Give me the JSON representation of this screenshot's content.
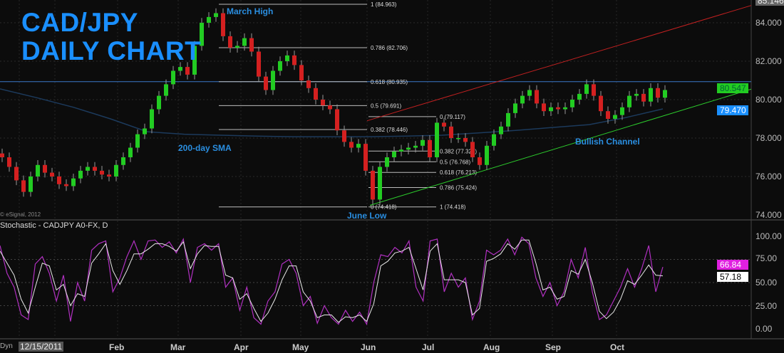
{
  "title": {
    "line1": "CAD/JPY",
    "line2": "DAILY CHART"
  },
  "annotations": {
    "march_high": "March High",
    "sma": "200-day SMA",
    "june_low": "June Low",
    "channel": "Bullish Channel"
  },
  "copyright": "© eSignal, 2012",
  "stoch_title": "Stochastic - CADJPY A0-FX, D",
  "date_label": "12/15/2011",
  "corner_label": "Dyn",
  "months": [
    "Feb",
    "Mar",
    "Apr",
    "May",
    "Jun",
    "Jul",
    "Aug",
    "Sep",
    "Oct"
  ],
  "colors": {
    "up": "#22cc22",
    "down": "#d42020",
    "accent": "#1a8fff",
    "sma": "#1c3a5c",
    "channel_upper": "#c02020",
    "channel_lower": "#2ccc2c",
    "stoch_k": "#b030c0",
    "stoch_d": "#e8e8e8"
  },
  "chart_data": [
    {
      "type": "candlestick",
      "title": "CAD/JPY DAILY CHART",
      "ylim": [
        74,
        85.146
      ],
      "y_ticks": [
        "84.000",
        "82.000",
        "80.000",
        "78.000",
        "76.000",
        "74.000"
      ],
      "top_value": "85.146",
      "last_price": "80.547",
      "sma_value": "79.470",
      "x_range": [
        "12/15/2011",
        "Oct"
      ],
      "closes": [
        77,
        76.5,
        75.8,
        75.2,
        76,
        76.6,
        76.2,
        76,
        75.6,
        75.5,
        75.9,
        76.3,
        76.5,
        76.3,
        76.1,
        76,
        76.6,
        77,
        77.5,
        78.2,
        78.5,
        79.5,
        80.2,
        80.8,
        81.5,
        81.7,
        81.3,
        82.8,
        84,
        84.3,
        84.5,
        83.3,
        82.7,
        82.8,
        83.2,
        82.5,
        81.2,
        80.5,
        81.5,
        82,
        82.3,
        81.8,
        81,
        80.6,
        80,
        79.7,
        79.5,
        78.4,
        77.8,
        77.5,
        77.7,
        76.3,
        74.8,
        76.5,
        77,
        77.3,
        77.4,
        77.5,
        77.6,
        77.9,
        77,
        78.8,
        78.6,
        78,
        78,
        77.8,
        77,
        76.6,
        77.6,
        78.2,
        78.6,
        79.3,
        79.8,
        80.2,
        80.5,
        79.8,
        79.4,
        79.6,
        79.5,
        79.6,
        80,
        80.3,
        80.8,
        80.2,
        79.4,
        79,
        79.2,
        79.6,
        80.2,
        80.3,
        79.9,
        80.6,
        80.1,
        80.5
      ],
      "sma_200": [
        80.56,
        80.1,
        79.6,
        79,
        78.33,
        78.2,
        78.15,
        78.1,
        78.07,
        78.07,
        78.07,
        78.1,
        78.15,
        78.27,
        78.4,
        78.55,
        78.7,
        79.07,
        79.52
      ],
      "resistance_level": 80.935,
      "fib_march_to_june": [
        {
          "label": "1 (84.963)",
          "value": 84.963
        },
        {
          "label": "0.786 (82.706)",
          "value": 82.706
        },
        {
          "label": "0.618 (80.935)",
          "value": 80.935
        },
        {
          "label": "0.5 (79.691)",
          "value": 79.691
        },
        {
          "label": "0.382 (78.446)",
          "value": 78.446
        },
        {
          "label": "0 (74.418)",
          "value": 74.418
        }
      ],
      "fib_june_to_july": [
        {
          "label": "0 (79.117)",
          "value": 79.117
        },
        {
          "label": "0.382 (77.322)",
          "value": 77.322
        },
        {
          "label": "0.5 (76.768)",
          "value": 76.768
        },
        {
          "label": "0.618 (76.213)",
          "value": 76.213
        },
        {
          "label": "0.786 (75.424)",
          "value": 75.424
        },
        {
          "label": "1 (74.418)",
          "value": 74.418
        }
      ],
      "channel_upper": [
        78.9,
        84.9
      ],
      "channel_lower": [
        74.5,
        80.547
      ]
    },
    {
      "type": "line",
      "title": "Stochastic - CADJPY A0-FX, D",
      "ylim": [
        0,
        100
      ],
      "y_ticks": [
        "100.00",
        "75.00",
        "50.00",
        "25.00",
        "0.00"
      ],
      "k_last": "66.84",
      "d_last": "57.18",
      "d": [
        84,
        71,
        58,
        32,
        17,
        45,
        71,
        68,
        42,
        48,
        25,
        38,
        35,
        71,
        81,
        92,
        63,
        48,
        63,
        81,
        81,
        86,
        92,
        92,
        89,
        84,
        94,
        65,
        81,
        90,
        89,
        89,
        58,
        55,
        32,
        38,
        22,
        8,
        17,
        32,
        53,
        68,
        68,
        40,
        30,
        12,
        15,
        15,
        7,
        13,
        12,
        15,
        8,
        27,
        68,
        73,
        82,
        84,
        88,
        65,
        42,
        84,
        92,
        53,
        53,
        53,
        50,
        15,
        22,
        73,
        76,
        81,
        92,
        86,
        96,
        96,
        71,
        42,
        45,
        32,
        35,
        63,
        59,
        75,
        50,
        19,
        11,
        18,
        32,
        52,
        48,
        58,
        69,
        58,
        57.18
      ],
      "k": [
        90,
        60,
        45,
        15,
        10,
        70,
        78,
        60,
        30,
        58,
        8,
        50,
        30,
        85,
        92,
        95,
        40,
        55,
        78,
        95,
        75,
        95,
        96,
        88,
        94,
        82,
        97,
        50,
        88,
        92,
        85,
        92,
        45,
        55,
        20,
        45,
        12,
        5,
        30,
        40,
        70,
        75,
        60,
        25,
        35,
        6,
        25,
        12,
        5,
        20,
        8,
        18,
        5,
        50,
        80,
        78,
        88,
        82,
        95,
        45,
        30,
        95,
        97,
        40,
        60,
        45,
        55,
        10,
        30,
        85,
        80,
        85,
        97,
        80,
        99,
        92,
        55,
        35,
        50,
        25,
        40,
        75,
        55,
        88,
        40,
        10,
        15,
        30,
        45,
        65,
        45,
        65,
        90,
        40,
        66.84
      ]
    }
  ]
}
